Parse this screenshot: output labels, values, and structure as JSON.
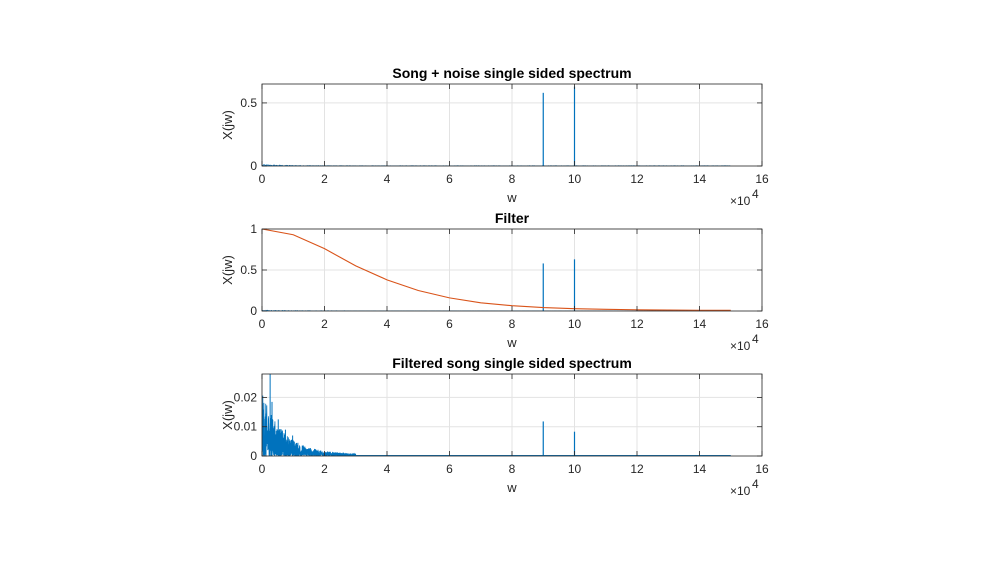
{
  "chart_data": [
    {
      "type": "line",
      "title": "Song + noise single sided spectrum",
      "xlabel": "w",
      "ylabel": "X(jw)",
      "xlim": [
        0,
        160000
      ],
      "ylim": [
        0,
        0.65
      ],
      "x_ticks": [
        0,
        2,
        4,
        6,
        8,
        10,
        12,
        14,
        16
      ],
      "y_ticks": [
        0,
        0.5
      ],
      "y_tick_labels": [
        "0",
        "0.5"
      ],
      "x_exponent_label": "×10",
      "x_exponent_power": "4",
      "grid": true,
      "series": [
        {
          "color": "#0072BD",
          "spikes": [
            {
              "x": 90000,
              "y": 0.58
            },
            {
              "x": 100000,
              "y": 0.63
            }
          ],
          "noise_floor": {
            "x_end": 150000,
            "y_peak": 0.02
          }
        }
      ]
    },
    {
      "type": "line",
      "title": "Filter",
      "xlabel": "w",
      "ylabel": "X(jw)",
      "xlim": [
        0,
        160000
      ],
      "ylim": [
        0,
        1
      ],
      "x_ticks": [
        0,
        2,
        4,
        6,
        8,
        10,
        12,
        14,
        16
      ],
      "y_ticks": [
        0,
        0.5,
        1
      ],
      "y_tick_labels": [
        "0",
        "0.5",
        "1"
      ],
      "x_exponent_label": "×10",
      "x_exponent_power": "4",
      "grid": true,
      "series": [
        {
          "color": "#0072BD",
          "spikes": [
            {
              "x": 90000,
              "y": 0.58
            },
            {
              "x": 100000,
              "y": 0.63
            }
          ],
          "noise_floor": {
            "x_end": 150000,
            "y_peak": 0.02
          }
        },
        {
          "color": "#D95319",
          "curve": {
            "x": [
              0,
              10000,
              20000,
              30000,
              40000,
              50000,
              60000,
              70000,
              80000,
              90000,
              100000,
              110000,
              120000,
              130000,
              140000,
              150000
            ],
            "y": [
              1.0,
              0.93,
              0.76,
              0.55,
              0.38,
              0.25,
              0.16,
              0.1,
              0.065,
              0.042,
              0.028,
              0.02,
              0.015,
              0.011,
              0.009,
              0.008
            ]
          }
        }
      ]
    },
    {
      "type": "line",
      "title": "Filtered song single sided spectrum",
      "xlabel": "w",
      "ylabel": "X(jw)",
      "xlim": [
        0,
        160000
      ],
      "ylim": [
        0,
        0.028
      ],
      "x_ticks": [
        0,
        2,
        4,
        6,
        8,
        10,
        12,
        14,
        16
      ],
      "y_ticks": [
        0,
        0.01,
        0.02
      ],
      "y_tick_labels": [
        "0",
        "0.01",
        "0.02"
      ],
      "x_exponent_label": "×10",
      "x_exponent_power": "4",
      "grid": true,
      "series": [
        {
          "color": "#0072BD",
          "spikes": [
            {
              "x": 90000,
              "y": 0.0118
            },
            {
              "x": 100000,
              "y": 0.0083
            }
          ],
          "dense_low_freq": {
            "x_end": 30000,
            "y_peak": 0.028
          }
        }
      ]
    }
  ]
}
